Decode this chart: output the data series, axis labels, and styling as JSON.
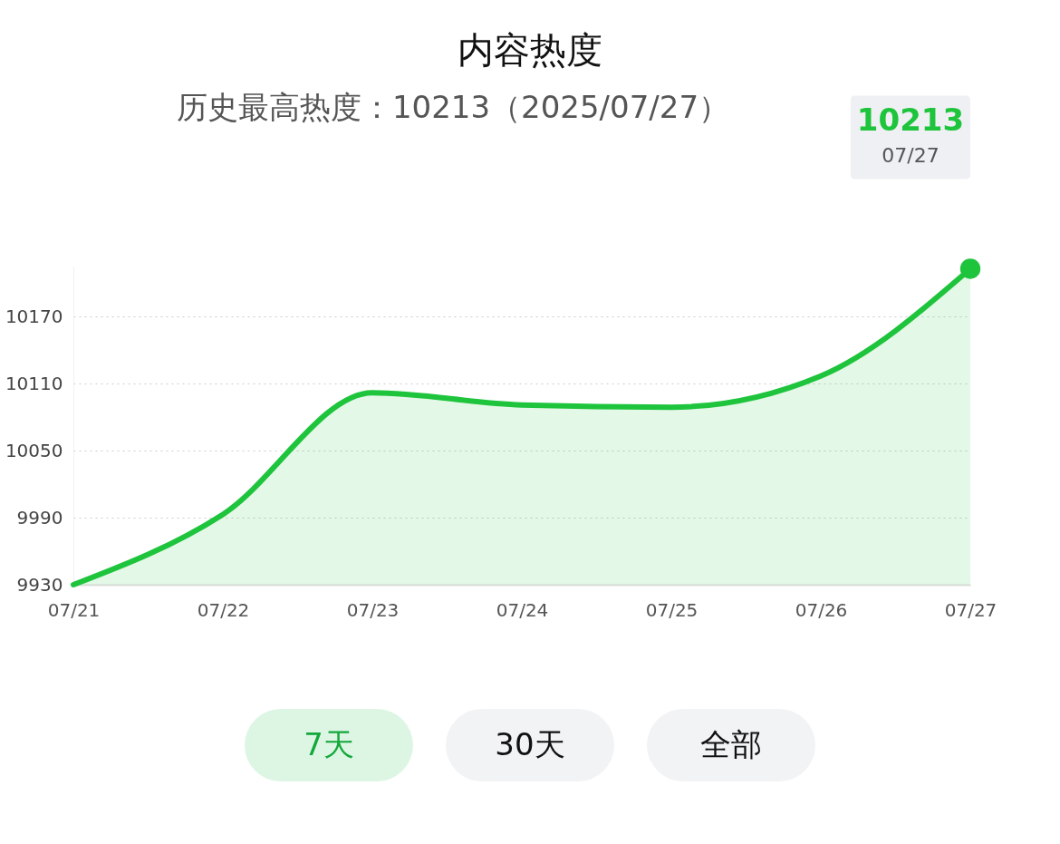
{
  "chart_data": {
    "type": "area",
    "title": "内容热度",
    "subtitle": "历史最高热度：10213（2025/07/27）",
    "categories": [
      "07/21",
      "07/22",
      "07/23",
      "07/24",
      "07/25",
      "07/26",
      "07/27"
    ],
    "series": [
      {
        "color": "#1ec43c",
        "values": [
          9930,
          9993,
          10102,
          10091,
          10089,
          10117,
          10213
        ]
      }
    ],
    "ylim": [
      9930,
      10215
    ],
    "yticks": [
      9930,
      9990,
      10050,
      10110,
      10170
    ],
    "grid": "y",
    "marker": "none",
    "line_style": "solid",
    "annotations": [
      "10213",
      "07/27",
      "7天",
      "30天",
      "全部"
    ]
  }
}
